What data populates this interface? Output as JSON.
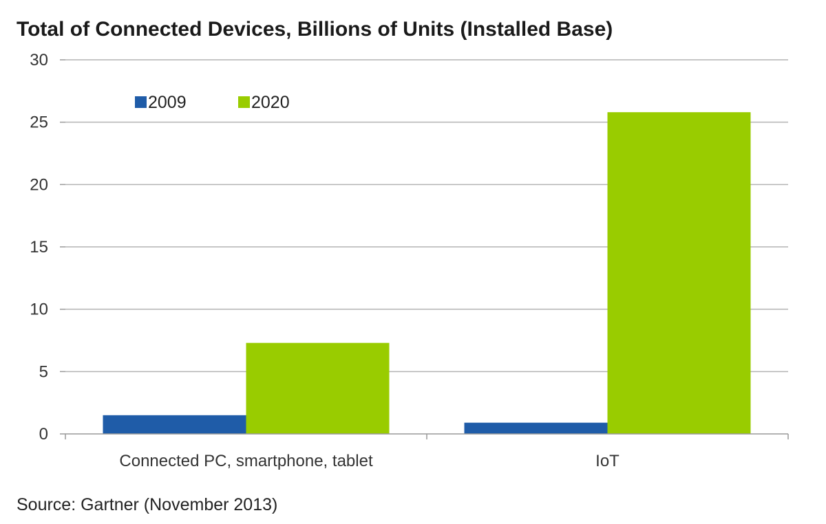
{
  "chart_data": {
    "type": "bar",
    "title": "Total of Connected Devices, Billions of Units (Installed Base)",
    "categories": [
      "Connected PC, smartphone, tablet",
      "IoT"
    ],
    "series": [
      {
        "name": "2009",
        "values": [
          1.5,
          0.9
        ],
        "color": "#1f5ca8"
      },
      {
        "name": "2020",
        "values": [
          7.3,
          25.8
        ],
        "color": "#99cc00"
      }
    ],
    "ylim": [
      0,
      30
    ],
    "yticks": [
      "0",
      "5",
      "10",
      "15",
      "20",
      "25",
      "30"
    ],
    "grid": true,
    "legend_position": "top-left",
    "source": "Source: Gartner (November 2013)"
  }
}
